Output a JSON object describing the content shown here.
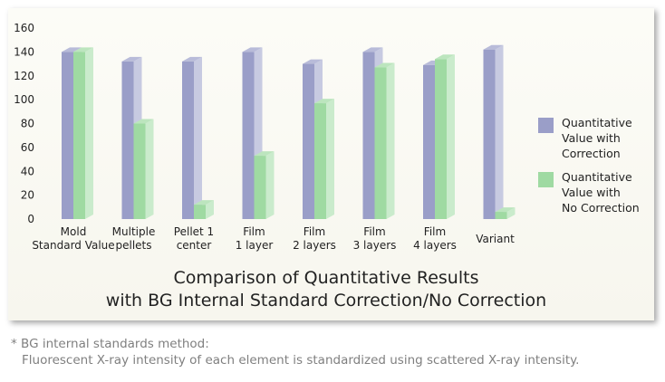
{
  "chart_data": {
    "type": "bar",
    "title_line1": "Comparison of Quantitative Results",
    "title_line2": "with BG Internal Standard Correction/No Correction",
    "categories": [
      [
        "Mold",
        "Standard Value"
      ],
      [
        "Multiple",
        "pellets"
      ],
      [
        "Pellet 1",
        "center"
      ],
      [
        "Film",
        "1 layer"
      ],
      [
        "Film",
        "2 layers"
      ],
      [
        "Film",
        "3 layers"
      ],
      [
        "Film",
        "4 layers"
      ],
      [
        "Variant"
      ]
    ],
    "series": [
      {
        "name": "Quantitative\nValue with\nCorrection",
        "color": "#9a9ec8",
        "values": [
          140,
          132,
          132,
          140,
          130,
          140,
          129,
          142
        ]
      },
      {
        "name": "Quantitative\nValue with\nNo Correction",
        "color": "#9fdaa2",
        "values": [
          140,
          80,
          12,
          53,
          97,
          127,
          134,
          6
        ]
      }
    ],
    "ylim": [
      0,
      160
    ],
    "yticks": [
      0,
      20,
      40,
      60,
      80,
      100,
      120,
      140,
      160
    ],
    "legend_position": "right",
    "grid": false
  },
  "note": {
    "line1": "* BG internal standards method:",
    "line2": "Fluorescent X-ray intensity of each element is standardized using scattered X-ray intensity."
  }
}
